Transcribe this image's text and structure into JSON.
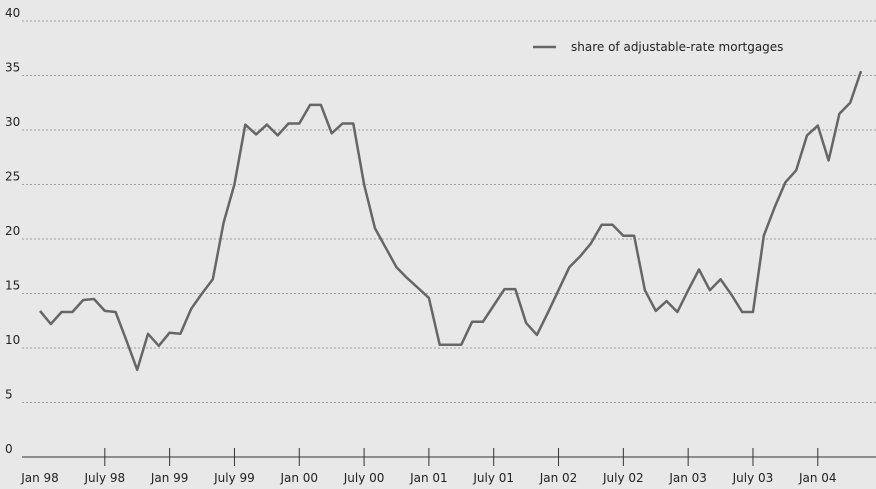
{
  "chart_data": {
    "type": "line",
    "categories": [
      "Jan 98",
      null,
      null,
      null,
      null,
      null,
      "July 98",
      null,
      null,
      null,
      null,
      null,
      "Jan 99",
      null,
      null,
      null,
      null,
      null,
      "July 99",
      null,
      null,
      null,
      null,
      null,
      "Jan 00",
      null,
      null,
      null,
      null,
      null,
      "July 00",
      null,
      null,
      null,
      null,
      null,
      "Jan 01",
      null,
      null,
      null,
      null,
      null,
      "July 01",
      null,
      null,
      null,
      null,
      null,
      "Jan 02",
      null,
      null,
      null,
      null,
      null,
      "July 02",
      null,
      null,
      null,
      null,
      null,
      "Jan 03",
      null,
      null,
      null,
      null,
      null,
      "July 03",
      null,
      null,
      null,
      null,
      null,
      "Jan 04",
      null,
      null,
      null,
      null
    ],
    "series": [
      {
        "name": "share of adjustable-rate mortgages",
        "color": "#666666",
        "values": [
          13.4,
          12.2,
          13.3,
          13.3,
          14.4,
          14.5,
          13.4,
          13.3,
          10.7,
          8.0,
          11.3,
          10.2,
          11.4,
          11.3,
          13.6,
          15.0,
          16.3,
          21.5,
          25.0,
          30.5,
          29.6,
          30.5,
          29.5,
          30.6,
          30.6,
          32.3,
          32.3,
          29.7,
          30.6,
          30.6,
          25.0,
          21.0,
          19.2,
          17.4,
          16.4,
          15.5,
          14.6,
          10.3,
          10.3,
          10.3,
          12.4,
          12.4,
          13.9,
          15.4,
          15.4,
          12.3,
          11.2,
          13.2,
          15.3,
          17.4,
          18.4,
          19.6,
          21.3,
          21.3,
          20.3,
          20.3,
          15.3,
          13.4,
          14.3,
          13.3,
          15.3,
          17.2,
          15.3,
          16.3,
          14.9,
          13.3,
          13.3,
          20.3,
          22.9,
          25.2,
          26.3,
          29.5,
          30.4,
          27.2,
          31.5,
          32.5,
          35.4
        ]
      }
    ],
    "ylim": [
      0,
      40
    ],
    "yticks": [
      0,
      5,
      10,
      15,
      20,
      25,
      30,
      35,
      40
    ],
    "grid": true
  }
}
